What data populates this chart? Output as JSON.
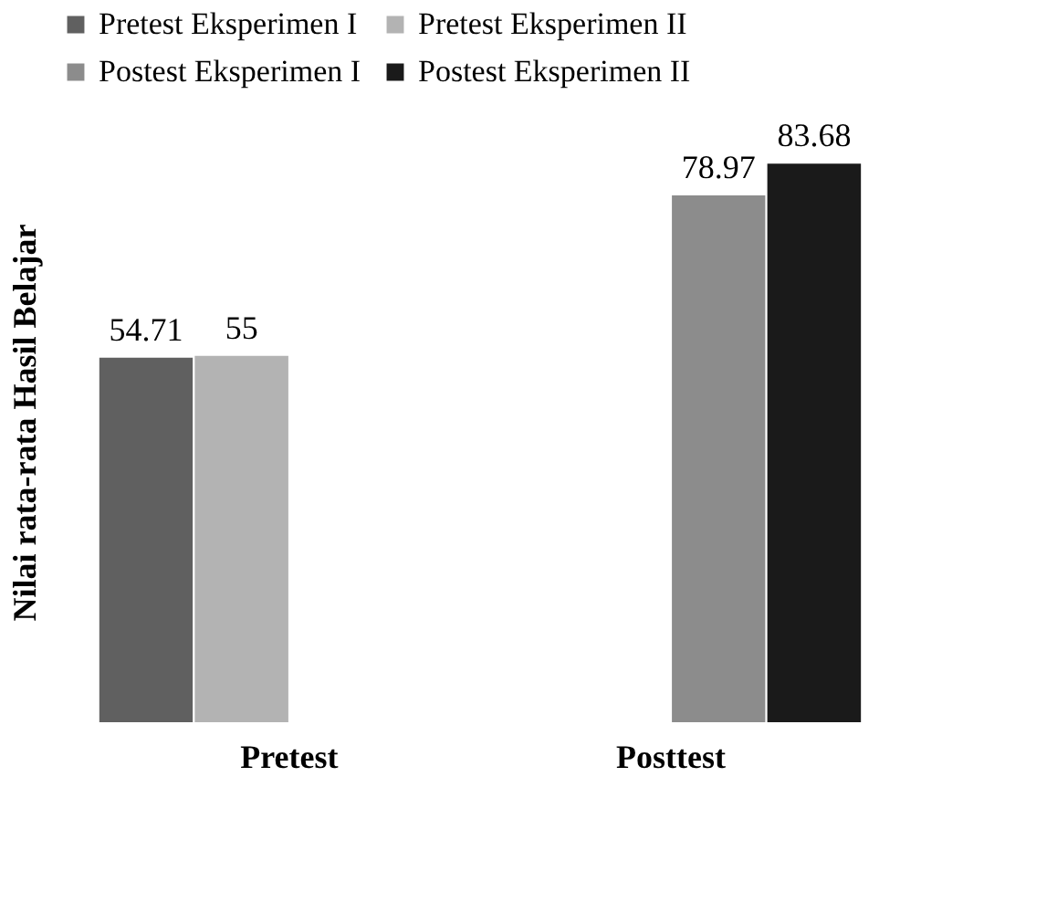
{
  "chart_data": {
    "type": "bar",
    "ylabel": "Nilai rata-rata Hasil Belajar",
    "categories": [
      "Pretest",
      "Posttest"
    ],
    "series": [
      {
        "name": "Pretest Eksperimen I",
        "color": "#606060",
        "values": [
          54.71,
          null
        ]
      },
      {
        "name": "Pretest Eksperimen II",
        "color": "#b3b3b3",
        "values": [
          55,
          null
        ]
      },
      {
        "name": "Postest Eksperimen I",
        "color": "#8c8c8c",
        "values": [
          null,
          78.97
        ]
      },
      {
        "name": "Postest Eksperimen II",
        "color": "#1a1a1a",
        "values": [
          null,
          83.68
        ]
      }
    ],
    "data_labels": true,
    "legend": "top",
    "grid": false
  }
}
